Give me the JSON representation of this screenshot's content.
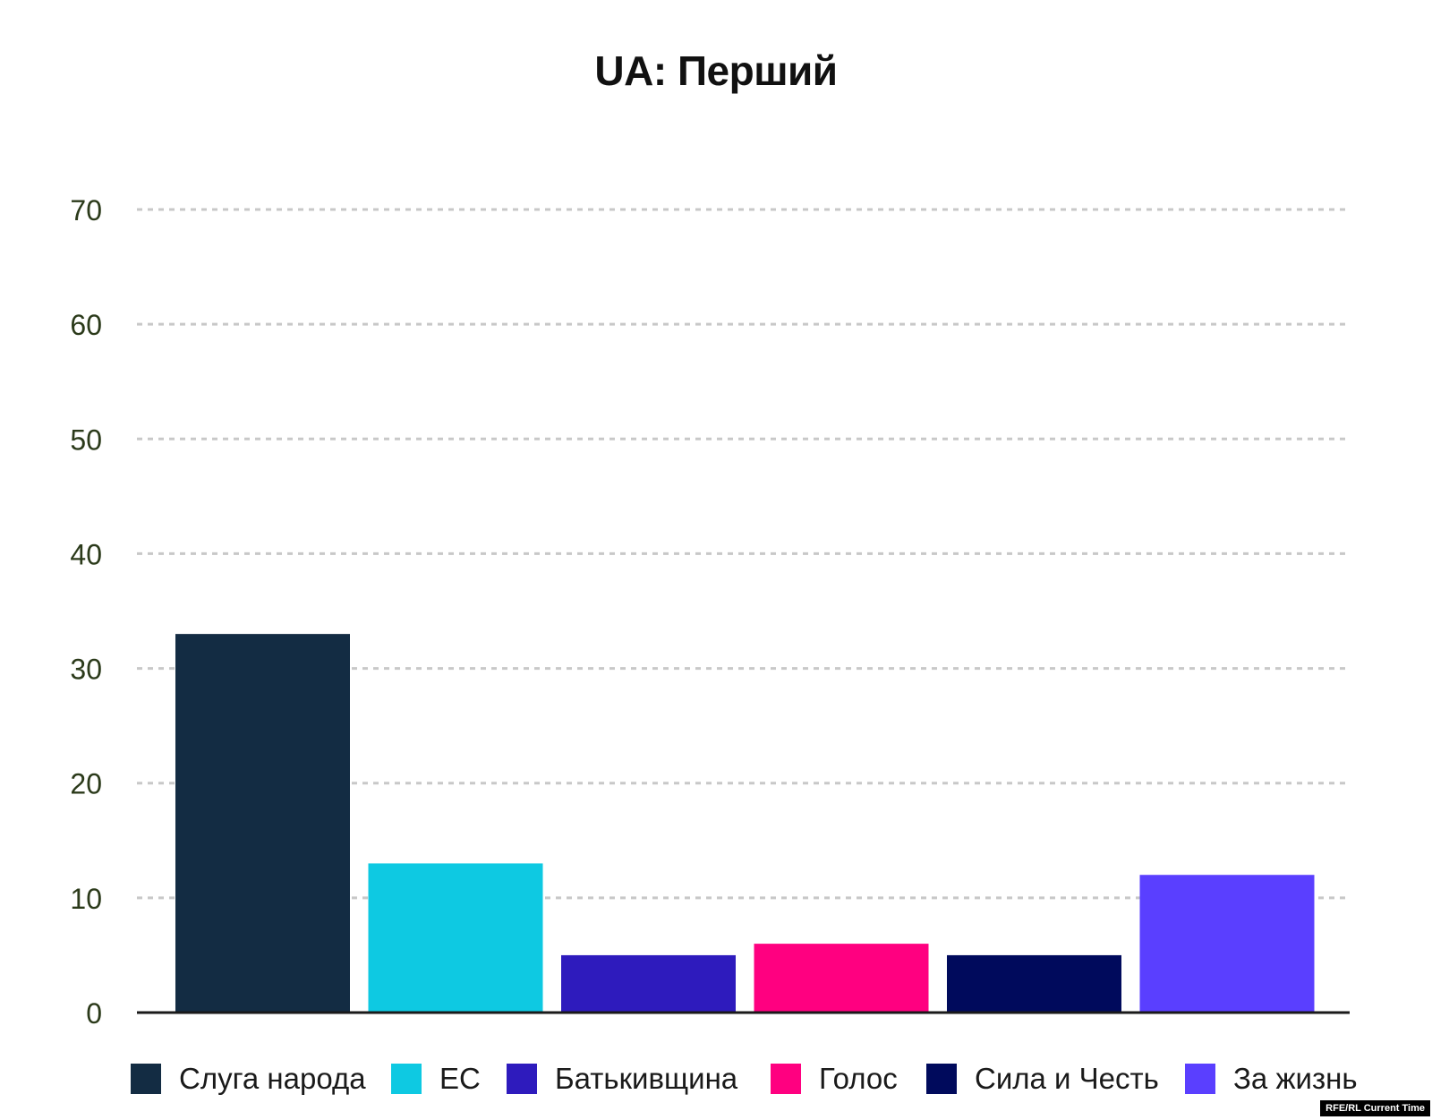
{
  "chart_data": {
    "type": "bar",
    "title": "UA: Перший",
    "categories": [
      "Слуга народа",
      "ЕС",
      "Батькивщина",
      "Голос",
      "Сила и Честь",
      "За жизнь"
    ],
    "values": [
      33,
      13,
      5,
      6,
      5,
      12
    ],
    "colors": [
      "#132c43",
      "#0ec9e2",
      "#2e1bbd",
      "#ff0080",
      "#000a5c",
      "#5a3fff"
    ],
    "ylim": [
      0,
      70
    ],
    "yticks": [
      0,
      10,
      20,
      30,
      40,
      50,
      60,
      70
    ],
    "grid": true,
    "legend_placement": "bottom",
    "xlabel": "",
    "ylabel": ""
  },
  "source": "RFE/RL Current Time"
}
